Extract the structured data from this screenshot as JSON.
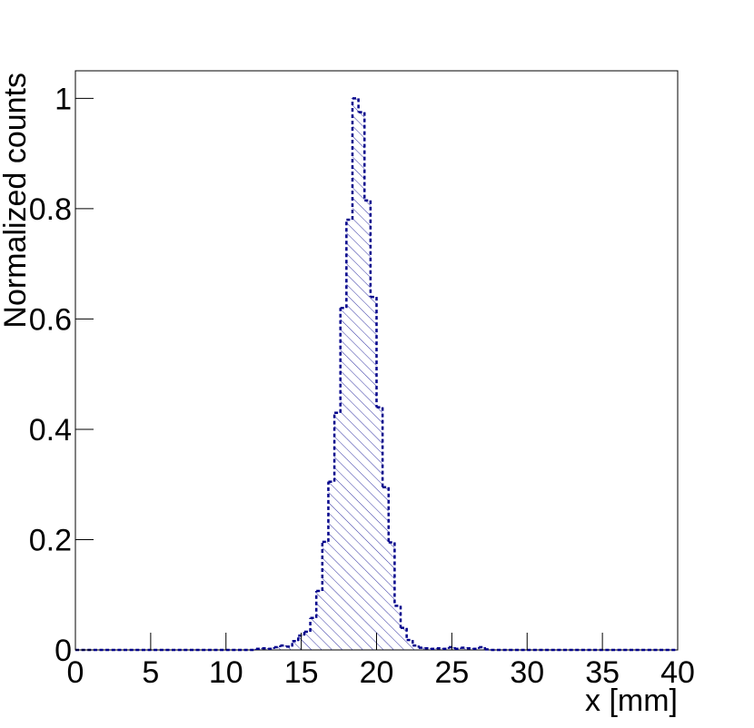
{
  "chart_data": {
    "type": "histogram",
    "x_label": "x [mm]",
    "y_label": "Normalized counts",
    "color": "#00008b",
    "fill": "hatched",
    "line_style": "dashed",
    "bins": [
      0,
      0.4,
      0.8,
      1.2,
      1.6,
      2,
      2.4,
      2.8,
      3.2,
      3.6,
      4,
      4.4,
      4.8,
      5.2,
      5.6,
      6,
      6.4,
      6.8,
      7.2,
      7.6,
      8,
      8.4,
      8.8,
      9.2,
      9.6,
      10,
      10.4,
      10.8,
      11.2,
      11.6,
      12,
      12.4,
      12.8,
      13.2,
      13.6,
      14,
      14.4,
      14.8,
      15.2,
      15.6,
      16,
      16.4,
      16.8,
      17.2,
      17.6,
      18,
      18.4,
      18.8,
      19.2,
      19.6,
      20,
      20.4,
      20.8,
      21.2,
      21.6,
      22,
      22.4,
      22.8,
      23.2,
      23.6,
      24,
      24.4,
      24.8,
      25.2,
      25.6,
      26,
      26.4,
      26.8,
      27.2,
      27.6,
      28,
      28.4,
      28.8,
      29.2,
      29.6,
      30,
      30.4,
      30.8,
      31.2,
      31.6,
      32,
      32.4,
      32.8,
      33.2,
      33.6,
      34,
      34.4,
      34.8,
      35.2,
      35.6,
      36,
      36.4,
      36.8,
      37.2,
      37.6,
      38,
      38.4,
      38.8,
      39.2,
      39.6,
      40
    ],
    "values": [
      0,
      0,
      0,
      0,
      0,
      0,
      0,
      0,
      0,
      0,
      0,
      0,
      0,
      0,
      0,
      0,
      0,
      0,
      0,
      0,
      0,
      0,
      0,
      0,
      0,
      0,
      0,
      0,
      0,
      0,
      0.002,
      0.003,
      0.002,
      0.005,
      0.008,
      0.006,
      0.016,
      0.026,
      0.033,
      0.058,
      0.107,
      0.196,
      0.305,
      0.43,
      0.62,
      0.78,
      1,
      0.975,
      0.815,
      0.64,
      0.44,
      0.295,
      0.195,
      0.08,
      0.04,
      0.018,
      0.008,
      0.004,
      0.003,
      0.002,
      0.003,
      0.002,
      0.005,
      0.002,
      0.004,
      0.003,
      0.002,
      0.005,
      0.001,
      0,
      0,
      0,
      0,
      0,
      0,
      0,
      0,
      0,
      0,
      0,
      0,
      0,
      0,
      0,
      0,
      0,
      0,
      0,
      0,
      0,
      0,
      0,
      0,
      0,
      0,
      0,
      0,
      0,
      0,
      0
    ],
    "xlim": [
      0,
      40
    ],
    "xticks": [
      0,
      5,
      10,
      15,
      20,
      25,
      30,
      35,
      40
    ],
    "ylim": [
      0,
      1.05
    ],
    "yticks": [
      0,
      0.2,
      0.4,
      0.6,
      0.8,
      1
    ]
  }
}
